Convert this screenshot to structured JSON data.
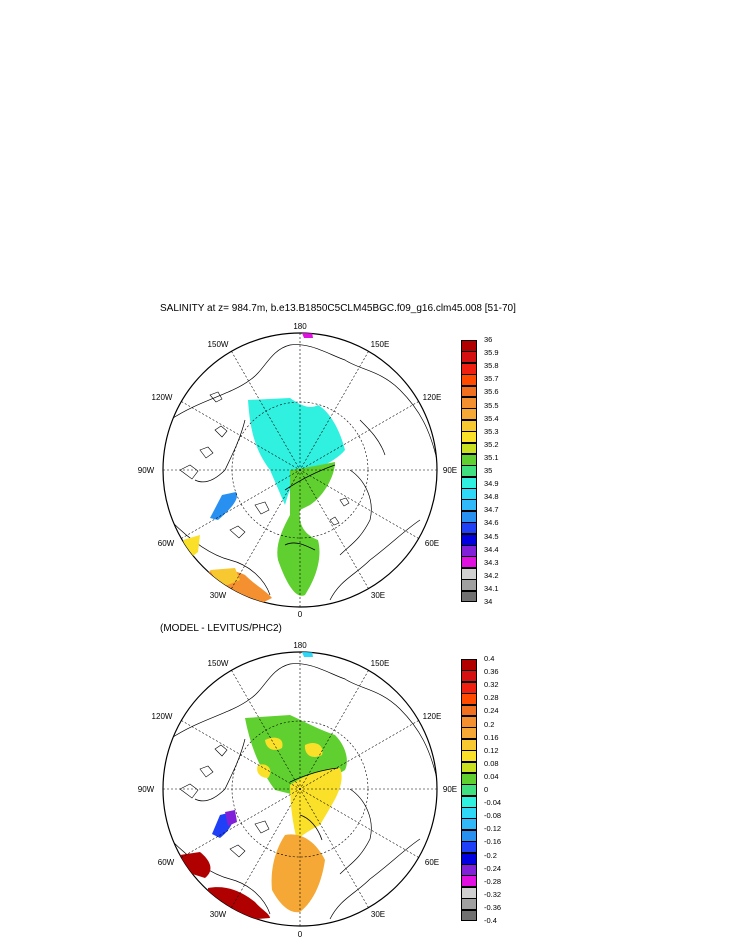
{
  "panel1": {
    "title": "SALINITY at z= 984.7m, b.e13.B1850C5CLM45BGC.f09_g16.clm45.008 [51-70]",
    "lon_labels": {
      "n": "180",
      "nw": "150W",
      "ne": "150E",
      "wnw": "120W",
      "ene": "120E",
      "w": "90W",
      "e": "90E",
      "wsw": "60W",
      "esw": "60E",
      "sw": "30W",
      "se": "30E",
      "s": "0"
    },
    "colorbar": {
      "labels": [
        "36",
        "35.9",
        "35.8",
        "35.7",
        "35.6",
        "35.5",
        "35.4",
        "35.3",
        "35.2",
        "35.1",
        "35",
        "34.9",
        "34.8",
        "34.7",
        "34.6",
        "34.5",
        "34.4",
        "34.3",
        "34.2",
        "34.1",
        "34"
      ],
      "colors": [
        "#b00000",
        "#d41010",
        "#f02010",
        "#ff4a00",
        "#f07020",
        "#f59030",
        "#f5a836",
        "#f8c830",
        "#fae028",
        "#c8e020",
        "#60d030",
        "#40e080",
        "#30f0e0",
        "#30d8f8",
        "#30b8f8",
        "#2890f0",
        "#2040f8",
        "#0000e0",
        "#8020d8",
        "#e010e0",
        "#d0d0d0",
        "#a0a0a0",
        "#707070"
      ]
    }
  },
  "panel2": {
    "title": "(MODEL - LEVITUS/PHC2)",
    "lon_labels": {
      "n": "180",
      "nw": "150W",
      "ne": "150E",
      "wnw": "120W",
      "ene": "120E",
      "w": "90W",
      "e": "90E",
      "wsw": "60W",
      "esw": "60E",
      "sw": "30W",
      "se": "30E",
      "s": "0"
    },
    "colorbar": {
      "labels": [
        "0.4",
        "0.36",
        "0.32",
        "0.28",
        "0.24",
        "0.2",
        "0.16",
        "0.12",
        "0.08",
        "0.04",
        "0",
        "-0.04",
        "-0.08",
        "-0.12",
        "-0.16",
        "-0.2",
        "-0.24",
        "-0.28",
        "-0.32",
        "-0.36",
        "-0.4"
      ],
      "colors": [
        "#b00000",
        "#d41010",
        "#f02010",
        "#ff4a00",
        "#f07020",
        "#f59030",
        "#f5a836",
        "#f8c830",
        "#fae028",
        "#c8e020",
        "#60d030",
        "#40e080",
        "#30f0e0",
        "#30d8f8",
        "#30b8f8",
        "#2890f0",
        "#2040f8",
        "#0000e0",
        "#8020d8",
        "#e010e0",
        "#d0d0d0",
        "#a0a0a0",
        "#707070"
      ]
    }
  }
}
